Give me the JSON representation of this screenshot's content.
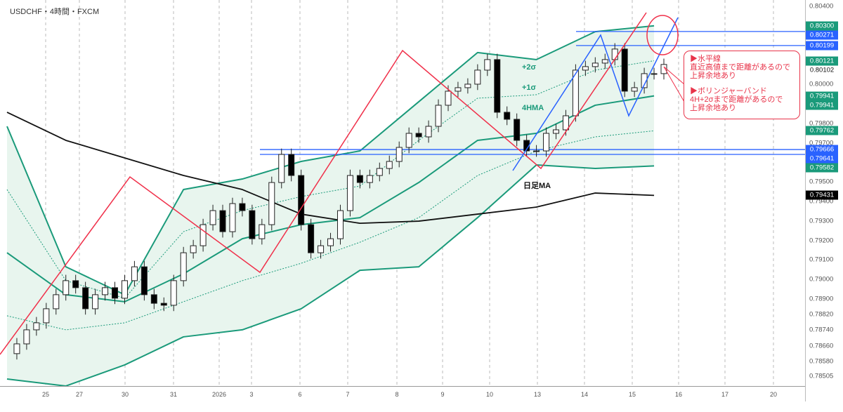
{
  "header": {
    "title": "USDCHF・4時間・FXCM"
  },
  "colors": {
    "band": "#1a9a7a",
    "band_fill": "#e8f5ee",
    "ma": "#111111",
    "trend_red": "#f0304a",
    "trend_blue": "#2962ff",
    "tag_green": "#1a9a7a",
    "tag_blue": "#2962ff",
    "tag_black": "#000000"
  },
  "price_axis": {
    "labels": [
      "0.80400",
      "0.80000",
      "0.79800",
      "0.79700",
      "0.79500",
      "0.79400",
      "0.79300",
      "0.79200",
      "0.79100",
      "0.79000",
      "0.78900",
      "0.78820",
      "0.78740",
      "0.78660",
      "0.78580",
      "0.78505"
    ],
    "tags": [
      {
        "text": "0.80300",
        "color": "green"
      },
      {
        "text": "0.80271",
        "color": "blue"
      },
      {
        "text": "0.80199",
        "color": "blue"
      },
      {
        "text": "0.80121",
        "color": "green"
      },
      {
        "text": "0.80102",
        "color": "plain"
      },
      {
        "text": "0.79941",
        "color": "green"
      },
      {
        "text": "0.79941",
        "color": "green"
      },
      {
        "text": "0.79762",
        "color": "green"
      },
      {
        "text": "0.79666",
        "color": "blue"
      },
      {
        "text": "0.79641",
        "color": "blue"
      },
      {
        "text": "0.79582",
        "color": "green"
      },
      {
        "text": "0.79431",
        "color": "black"
      }
    ]
  },
  "time_axis": {
    "labels": [
      "25",
      "27",
      "30",
      "31",
      "2026",
      "3",
      "6",
      "7",
      "8",
      "9",
      "10",
      "13",
      "14",
      "15",
      "16",
      "17",
      "20"
    ]
  },
  "band_labels": {
    "upper": "+2σ",
    "plus1": "+1σ",
    "middle": "4HMA",
    "daily": "日足MA"
  },
  "callout": {
    "line1": "▶水平線\n直近高値まで距離があるので\n上昇余地あり",
    "line2": "▶ボリンジャーバンド\n4H+2σまで距離があるので\n上昇余地あり"
  },
  "chart_data": {
    "type": "candlestick",
    "title": "USDCHF・4時間・FXCM",
    "ylim": [
      0.78454,
      0.80433
    ],
    "closes": [
      0.7862,
      0.7867,
      0.78742,
      0.78778,
      0.7885,
      0.78922,
      0.78994,
      0.78958,
      0.7885,
      0.78922,
      0.78958,
      0.78904,
      0.78994,
      0.79065,
      0.78922,
      0.78878,
      0.78868,
      0.78994,
      0.79137,
      0.79173,
      0.79281,
      0.79353,
      0.79245,
      0.79389,
      0.79353,
      0.79209,
      0.79281,
      0.79497,
      0.79641,
      0.79533,
      0.79281,
      0.79137,
      0.79173,
      0.79209,
      0.79353,
      0.79533,
      0.79497,
      0.79533,
      0.79569,
      0.79605,
      0.79677,
      0.79749,
      0.79731,
      0.79785,
      0.79893,
      0.79965,
      0.79983,
      0.80001,
      0.80073,
      0.80127,
      0.79857,
      0.79821,
      0.79713,
      0.79659,
      0.79659,
      0.79749,
      0.79767,
      0.79839,
      0.80073,
      0.80091,
      0.80109,
      0.80127,
      0.80181,
      0.79965,
      0.79983,
      0.80055,
      0.80055,
      0.80102
    ],
    "series_sample_every": 6,
    "bollinger_upper": [
      0.79785,
      0.79065,
      0.78922,
      0.79461,
      0.79515,
      0.79605,
      0.79659,
      0.79911,
      0.80163,
      0.80127,
      0.8027,
      0.803
    ],
    "bollinger_plus1": [
      0.79461,
      0.78994,
      0.78904,
      0.79245,
      0.79353,
      0.79425,
      0.79479,
      0.79713,
      0.79929,
      0.79947,
      0.80073,
      0.80121
    ],
    "middle_4hma": [
      0.79137,
      0.78922,
      0.78886,
      0.79029,
      0.79209,
      0.79281,
      0.79317,
      0.79497,
      0.79713,
      0.79749,
      0.79893,
      0.79941
    ],
    "bollinger_minus1": [
      0.78814,
      0.78742,
      0.78778,
      0.78886,
      0.78994,
      0.79083,
      0.79191,
      0.79317,
      0.79533,
      0.79659,
      0.79731,
      0.79762
    ],
    "bollinger_lower": [
      0.7849,
      0.78454,
      0.78562,
      0.78706,
      0.78742,
      0.7885,
      0.79047,
      0.79065,
      0.79317,
      0.79587,
      0.79569,
      0.79582
    ],
    "daily_ma": [
      0.79857,
      0.79713,
      0.79623,
      0.79533,
      0.79461,
      0.79335,
      0.79288,
      0.79299,
      0.79335,
      0.79371,
      0.79443,
      0.79431
    ],
    "horizontal_lines": [
      0.80271,
      0.80199,
      0.79666,
      0.79641
    ]
  }
}
